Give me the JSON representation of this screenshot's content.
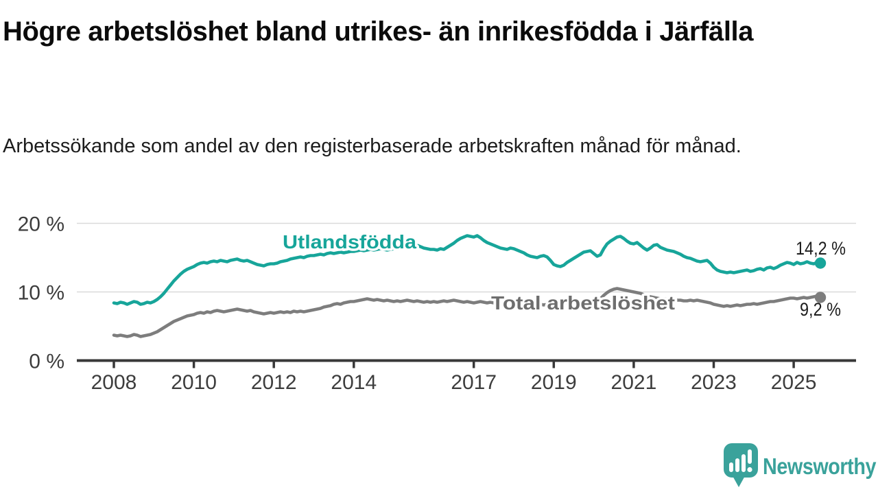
{
  "header": {
    "title": "Högre arbetslöshet bland utrikes- än inrikesfödda i Järfälla",
    "subtitle": "Arbetssökande som andel av den registerbaserade arbetskraften månad för månad."
  },
  "branding": {
    "logo_text": "Newsworthy",
    "logo_icon": "newsworthy-speech-bubble-bar-chart-icon",
    "logo_color": "#3aa29b"
  },
  "colors": {
    "series_foreign_born": "#17a59a",
    "series_total": "#7d7d7d",
    "series_total_label": "#6e6e6e",
    "axis": "#383838",
    "tick_label": "#3d3d3d",
    "gridline": "#d9d9d9",
    "value_label": "#1c1c1c",
    "background": "#ffffff"
  },
  "chart_data": {
    "type": "line",
    "title": "Högre arbetslöshet bland utrikes- än inrikesfödda i Järfälla",
    "subtitle": "Arbetssökande som andel av den registerbaserade arbetskraften månad för månad.",
    "unit": "%",
    "frequency": "monthly",
    "x_start": "2008-01",
    "x_end": "2025-09",
    "xlabel": "",
    "ylabel": "",
    "ylim": [
      0,
      21
    ],
    "yticks": [
      0,
      10,
      20
    ],
    "ytick_labels": [
      "0 %",
      "10 %",
      "20 %"
    ],
    "xticks": [
      2008,
      2010,
      2012,
      2014,
      2017,
      2019,
      2021,
      2023,
      2025
    ],
    "grid": "horizontal",
    "legend_position": "inline-labels-on-lines",
    "series": [
      {
        "name": "Utlandsfödda",
        "end_label": "14,2 %",
        "last_value": 14.2,
        "color": "#17a59a",
        "values": [
          8.4,
          8.3,
          8.5,
          8.4,
          8.2,
          8.4,
          8.6,
          8.5,
          8.2,
          8.3,
          8.5,
          8.4,
          8.6,
          8.9,
          9.3,
          9.8,
          10.4,
          11.0,
          11.6,
          12.1,
          12.6,
          13.0,
          13.3,
          13.5,
          13.7,
          14.0,
          14.2,
          14.3,
          14.2,
          14.4,
          14.5,
          14.4,
          14.6,
          14.5,
          14.4,
          14.6,
          14.7,
          14.8,
          14.6,
          14.5,
          14.6,
          14.4,
          14.2,
          14.0,
          13.9,
          13.8,
          14.0,
          14.1,
          14.1,
          14.2,
          14.4,
          14.5,
          14.6,
          14.8,
          14.9,
          15.0,
          15.1,
          15.0,
          15.2,
          15.3,
          15.3,
          15.4,
          15.5,
          15.4,
          15.6,
          15.7,
          15.6,
          15.7,
          15.8,
          15.7,
          15.8,
          15.9,
          15.9,
          16.0,
          16.1,
          16.0,
          16.1,
          16.2,
          16.1,
          16.2,
          16.3,
          16.2,
          16.1,
          16.2,
          16.3,
          16.4,
          16.5,
          16.4,
          16.5,
          16.6,
          16.7,
          16.8,
          16.6,
          16.4,
          16.3,
          16.2,
          16.2,
          16.1,
          16.3,
          16.2,
          16.5,
          16.8,
          17.1,
          17.5,
          17.8,
          18.0,
          18.2,
          18.1,
          18.0,
          18.2,
          17.9,
          17.5,
          17.2,
          17.0,
          16.8,
          16.6,
          16.4,
          16.3,
          16.2,
          16.4,
          16.3,
          16.1,
          15.9,
          15.7,
          15.4,
          15.2,
          15.1,
          15.0,
          15.2,
          15.3,
          15.1,
          14.6,
          14.0,
          13.8,
          13.7,
          13.9,
          14.3,
          14.6,
          14.9,
          15.2,
          15.5,
          15.8,
          15.9,
          16.0,
          15.6,
          15.2,
          15.4,
          16.3,
          17.0,
          17.4,
          17.7,
          18.0,
          18.1,
          17.8,
          17.4,
          17.1,
          17.0,
          17.2,
          16.8,
          16.4,
          16.1,
          16.4,
          16.8,
          16.9,
          16.5,
          16.3,
          16.1,
          16.0,
          15.9,
          15.7,
          15.5,
          15.2,
          15.0,
          14.9,
          14.7,
          14.5,
          14.4,
          14.5,
          14.6,
          14.2,
          13.6,
          13.2,
          13.0,
          12.9,
          12.8,
          12.9,
          12.8,
          12.9,
          13.0,
          13.1,
          13.2,
          13.0,
          13.1,
          13.3,
          13.4,
          13.2,
          13.5,
          13.6,
          13.4,
          13.6,
          13.9,
          14.1,
          14.3,
          14.2,
          14.0,
          14.3,
          14.1,
          14.2,
          14.4,
          14.2,
          14.1,
          14.3,
          14.2
        ]
      },
      {
        "name": "Total arbetslöshet",
        "end_label": "9,2 %",
        "last_value": 9.2,
        "color": "#7d7d7d",
        "values": [
          3.7,
          3.6,
          3.7,
          3.6,
          3.5,
          3.6,
          3.8,
          3.7,
          3.5,
          3.6,
          3.7,
          3.8,
          4.0,
          4.2,
          4.5,
          4.8,
          5.1,
          5.4,
          5.7,
          5.9,
          6.1,
          6.3,
          6.5,
          6.6,
          6.7,
          6.9,
          7.0,
          6.9,
          7.1,
          7.0,
          7.2,
          7.3,
          7.2,
          7.1,
          7.2,
          7.3,
          7.4,
          7.5,
          7.4,
          7.3,
          7.2,
          7.3,
          7.1,
          7.0,
          6.9,
          6.8,
          6.9,
          7.0,
          6.9,
          7.0,
          7.1,
          7.0,
          7.1,
          7.0,
          7.2,
          7.1,
          7.2,
          7.1,
          7.2,
          7.3,
          7.4,
          7.5,
          7.6,
          7.8,
          7.9,
          8.0,
          8.2,
          8.3,
          8.2,
          8.4,
          8.5,
          8.6,
          8.6,
          8.7,
          8.8,
          8.9,
          9.0,
          8.9,
          8.8,
          8.9,
          8.8,
          8.7,
          8.8,
          8.7,
          8.6,
          8.7,
          8.6,
          8.7,
          8.8,
          8.7,
          8.6,
          8.7,
          8.6,
          8.5,
          8.6,
          8.5,
          8.6,
          8.5,
          8.6,
          8.7,
          8.6,
          8.7,
          8.8,
          8.7,
          8.6,
          8.5,
          8.6,
          8.5,
          8.4,
          8.5,
          8.6,
          8.5,
          8.4,
          8.5,
          8.4,
          8.3,
          8.4,
          8.3,
          8.4,
          8.3,
          8.2,
          8.3,
          8.2,
          8.1,
          8.2,
          8.1,
          8.2,
          8.3,
          8.2,
          8.1,
          8.2,
          8.1,
          8.2,
          8.3,
          8.2,
          8.3,
          8.4,
          8.3,
          8.4,
          8.3,
          8.4,
          8.3,
          8.4,
          8.5,
          8.6,
          8.8,
          9.0,
          9.5,
          9.9,
          10.2,
          10.4,
          10.5,
          10.4,
          10.3,
          10.2,
          10.1,
          10.0,
          9.9,
          9.8,
          9.6,
          9.4,
          9.3,
          9.2,
          9.1,
          9.0,
          9.0,
          8.9,
          8.9,
          8.9,
          8.8,
          8.8,
          8.7,
          8.7,
          8.8,
          8.7,
          8.8,
          8.7,
          8.6,
          8.5,
          8.4,
          8.2,
          8.1,
          8.0,
          7.9,
          8.0,
          7.9,
          8.0,
          8.1,
          8.0,
          8.1,
          8.2,
          8.2,
          8.3,
          8.2,
          8.3,
          8.4,
          8.5,
          8.6,
          8.6,
          8.7,
          8.8,
          8.9,
          9.0,
          9.1,
          9.1,
          9.0,
          9.1,
          9.2,
          9.1,
          9.2,
          9.3,
          9.4,
          9.2
        ]
      }
    ]
  }
}
